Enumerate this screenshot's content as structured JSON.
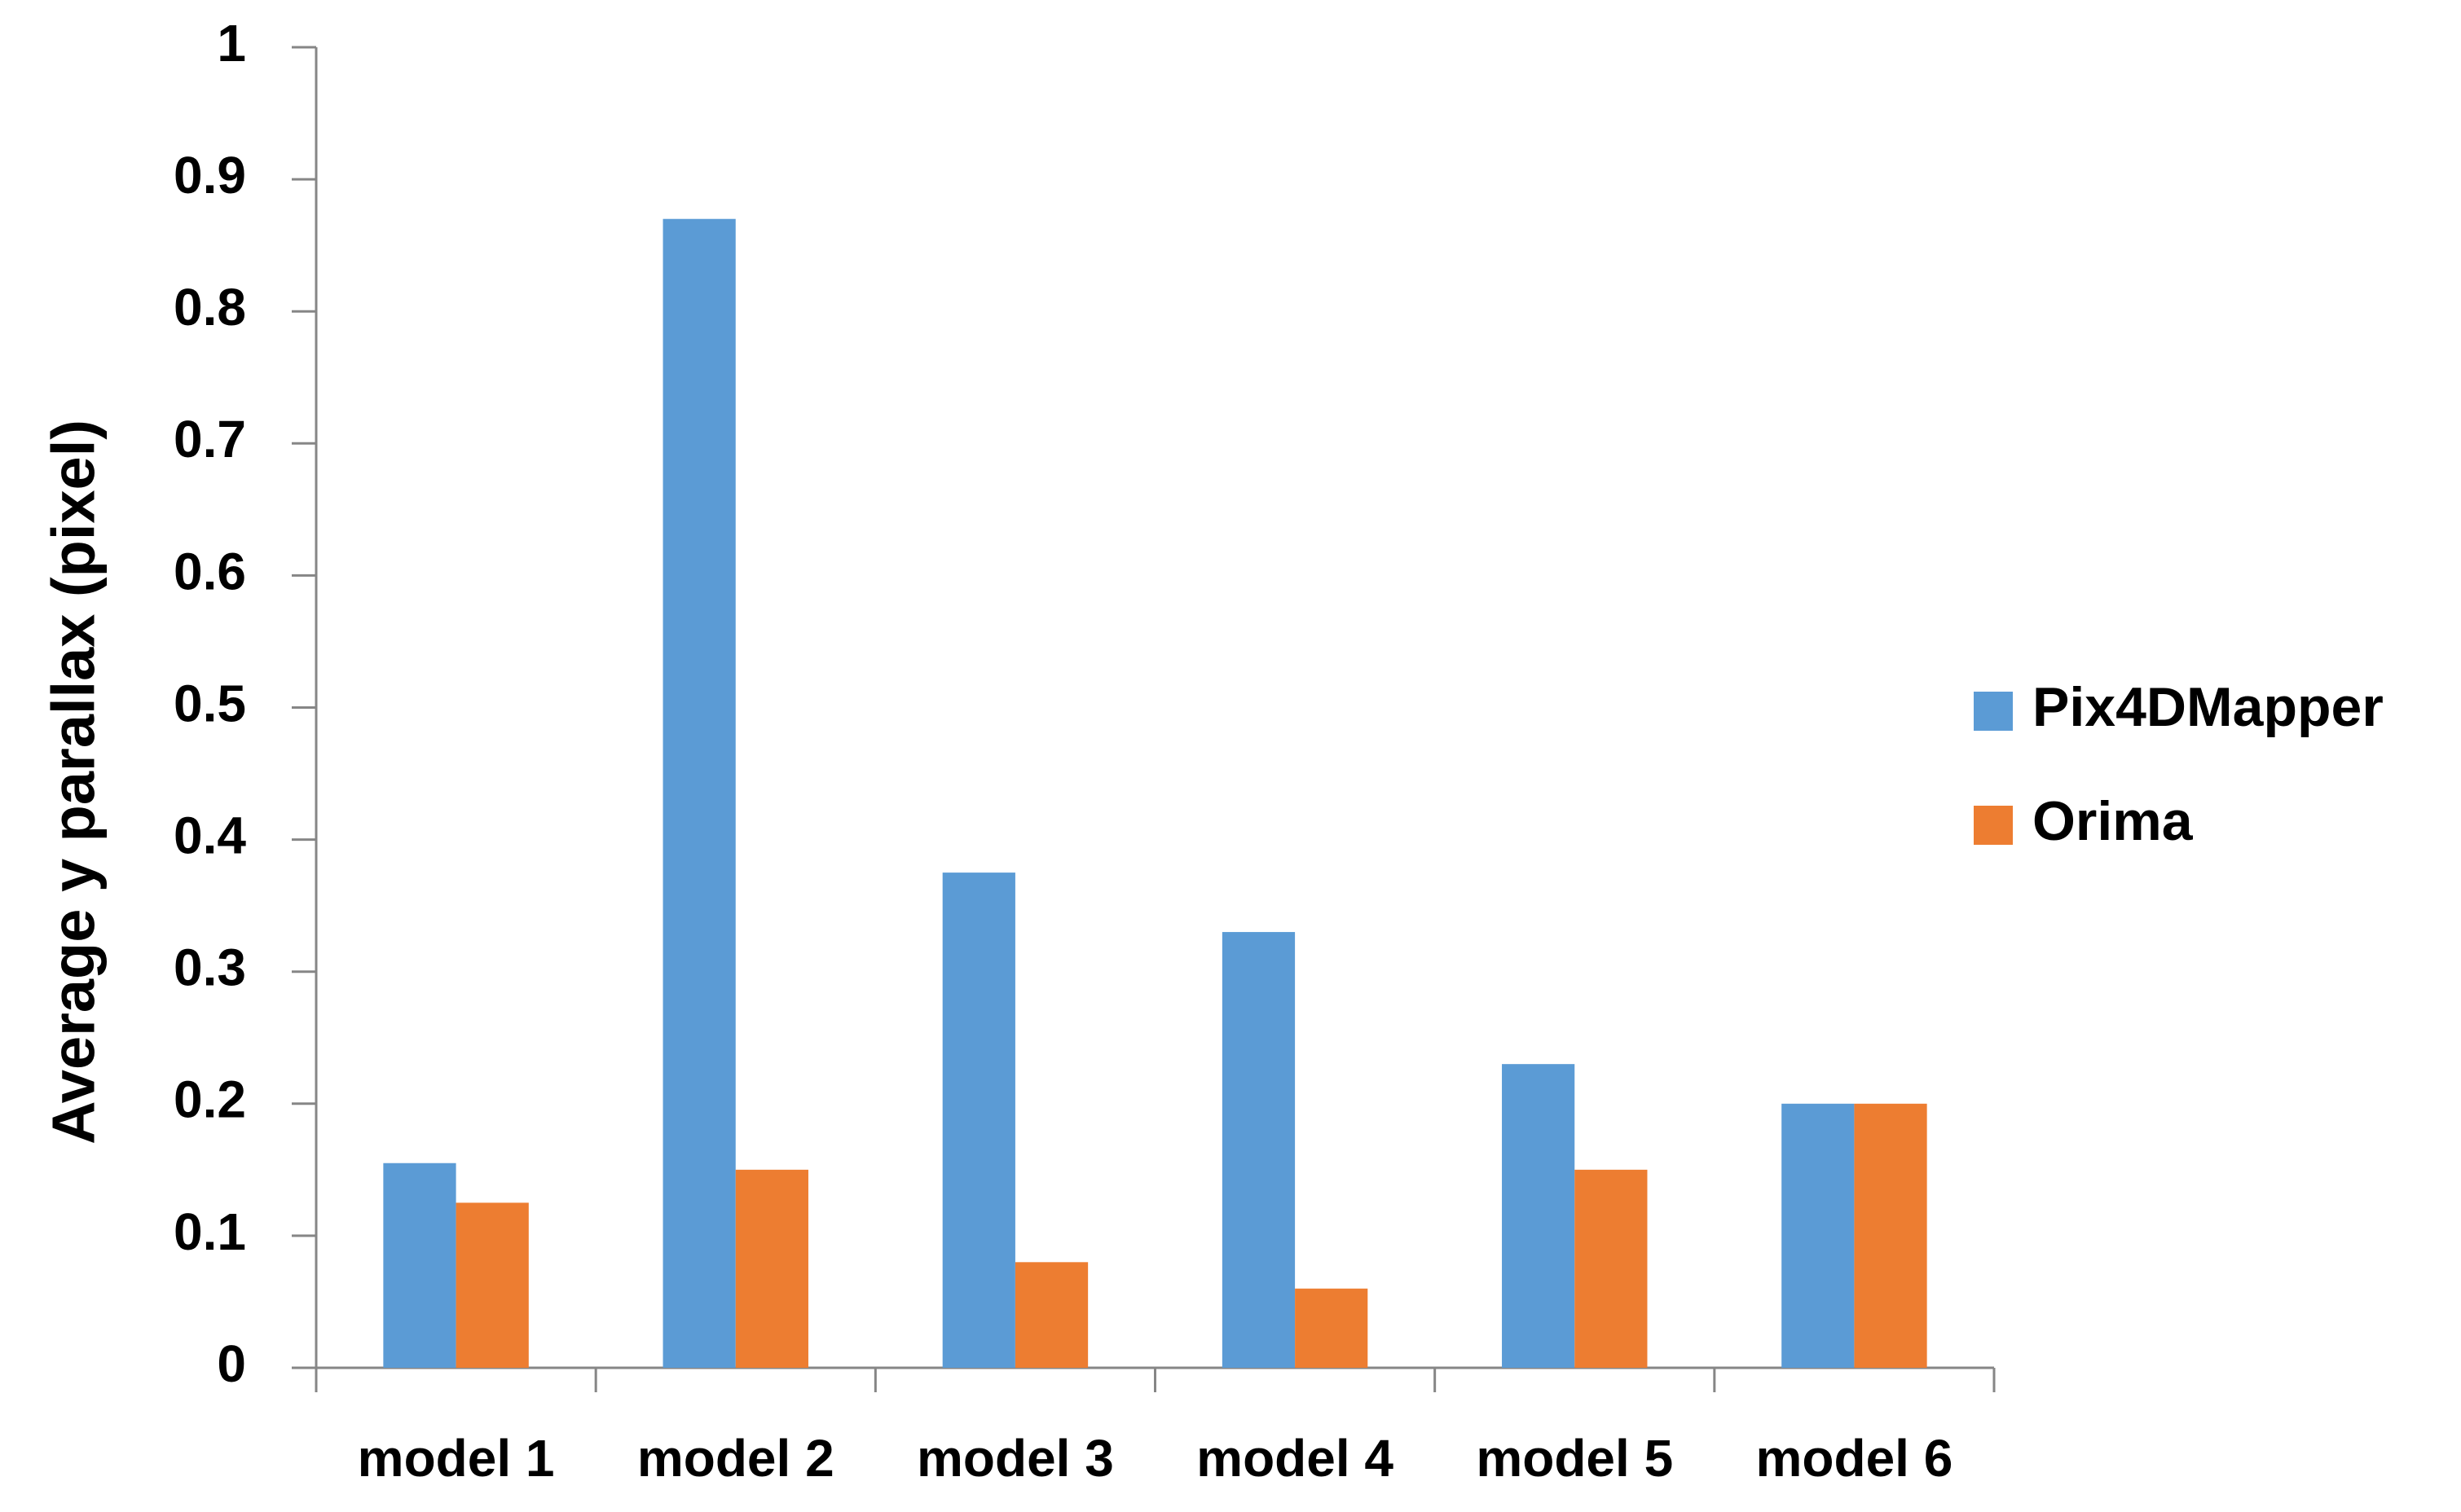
{
  "chart_data": {
    "type": "bar",
    "y_label": "Average y parallax (pixel)",
    "categories": [
      "model 1",
      "model 2",
      "model 3",
      "model 4",
      "model 5",
      "model 6"
    ],
    "series": [
      {
        "name": "Pix4DMapper",
        "color": "#5b9bd5",
        "values": [
          0.155,
          0.87,
          0.375,
          0.33,
          0.23,
          0.2
        ]
      },
      {
        "name": "Orima",
        "color": "#ed7d31",
        "values": [
          0.125,
          0.15,
          0.08,
          0.06,
          0.15,
          0.2
        ]
      }
    ],
    "ylim": [
      0,
      1
    ],
    "yticks": [
      0,
      0.1,
      0.2,
      0.3,
      0.4,
      0.5,
      0.6,
      0.7,
      0.8,
      0.9,
      1
    ],
    "grid": false,
    "legend": "right"
  }
}
